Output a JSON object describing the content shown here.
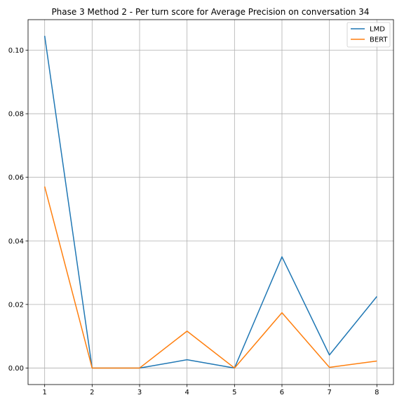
{
  "chart_data": {
    "type": "line",
    "title": "Phase 3 Method 2 - Per turn score for Average Precision on conversation 34",
    "xlabel": "",
    "ylabel": "",
    "x": [
      1,
      2,
      3,
      4,
      5,
      6,
      7,
      8
    ],
    "xticks": [
      "1",
      "2",
      "3",
      "4",
      "5",
      "6",
      "7",
      "8"
    ],
    "yticks": [
      "0.00",
      "0.02",
      "0.04",
      "0.06",
      "0.08",
      "0.10"
    ],
    "ytick_values": [
      0.0,
      0.02,
      0.04,
      0.06,
      0.08,
      0.1
    ],
    "xlim": [
      0.65,
      8.35
    ],
    "ylim": [
      -0.0052,
      0.1096
    ],
    "grid": true,
    "legend_position": "top-right",
    "series": [
      {
        "name": "LMD",
        "color": "#1f77b4",
        "values": [
          0.1045,
          0.0,
          0.0,
          0.0026,
          0.0,
          0.035,
          0.0041,
          0.0225
        ]
      },
      {
        "name": "BERT",
        "color": "#ff7f0e",
        "values": [
          0.0571,
          0.0,
          0.0,
          0.0116,
          0.0,
          0.0174,
          0.0002,
          0.0022
        ]
      }
    ]
  }
}
